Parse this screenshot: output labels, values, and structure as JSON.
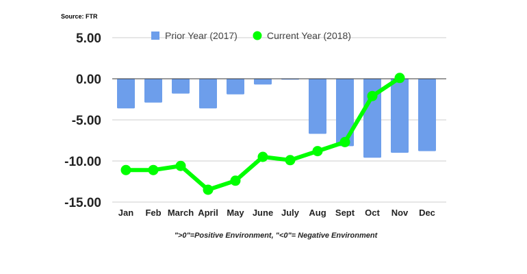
{
  "source": "Source: FTR",
  "note": "\">0\"=Positive Environment, \"<0\"= Negative Environment",
  "chart_data": {
    "type": "bar+line",
    "title": "",
    "xlabel": "",
    "ylabel": "",
    "categories": [
      "Jan",
      "Feb",
      "March",
      "April",
      "May",
      "June",
      "July",
      "Aug",
      "Sept",
      "Oct",
      "Nov",
      "Dec"
    ],
    "ylim": [
      -15,
      5
    ],
    "yticks": [
      "5.00",
      "0.00",
      "-5.00",
      "-10.00",
      "-15.00"
    ],
    "ytick_values": [
      5,
      0,
      -5,
      -10,
      -15
    ],
    "grid": true,
    "legend_position": "top",
    "series": [
      {
        "name": "Prior Year (2017)",
        "type": "bar",
        "color": "#6d9eeb",
        "values": [
          -3.6,
          -2.9,
          -1.8,
          -3.6,
          -1.9,
          -0.7,
          -0.1,
          -6.7,
          -8.2,
          -9.6,
          -9.0,
          -8.8
        ]
      },
      {
        "name": "Current Year (2018)",
        "type": "line",
        "color": "#00ff00",
        "values": [
          -11.1,
          -11.1,
          -10.6,
          -13.5,
          -12.4,
          -9.5,
          -9.9,
          -8.8,
          -7.7,
          -2.1,
          0.1,
          null
        ]
      }
    ]
  }
}
